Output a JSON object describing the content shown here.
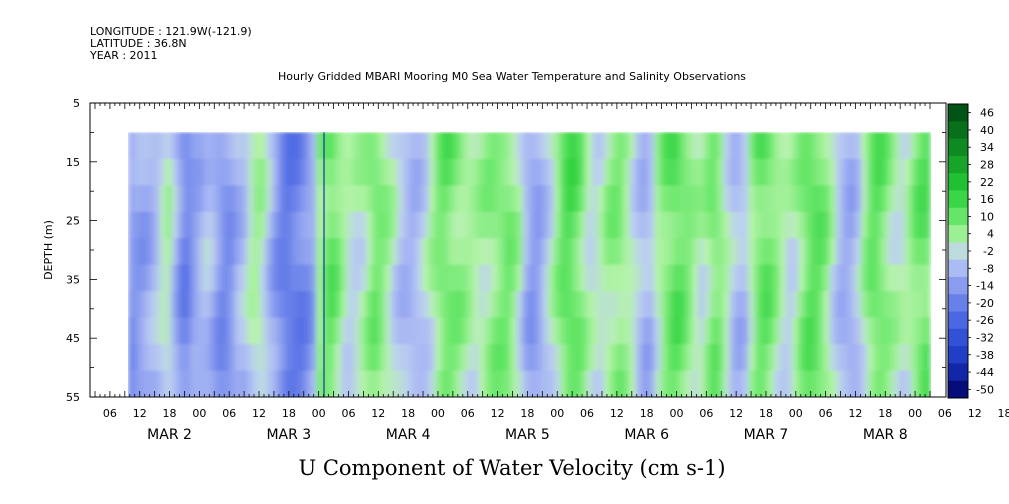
{
  "header": {
    "longitude": "LONGITUDE : 121.9W(-121.9)",
    "latitude": "LATITUDE : 36.8N",
    "year": "YEAR : 2011"
  },
  "chart_data": {
    "type": "heatmap",
    "title": "Hourly Gridded MBARI Mooring M0 Sea Water Temperature and Salinity Observations",
    "subtitle": "U Component of Water Velocity (cm s-1)",
    "ylabel": "DEPTH (m)",
    "xlabel": "",
    "y_inverted": true,
    "ylim": [
      5,
      55
    ],
    "y_ticks": [
      "5",
      "15",
      "25",
      "35",
      "45",
      "55"
    ],
    "data_depth_range": [
      10,
      55
    ],
    "x_hour_range": [
      0,
      168
    ],
    "x_start_note": "data begins near MAR 2 03",
    "x_tick_labels": [
      "06",
      "12",
      "18",
      "00",
      "06",
      "12",
      "18",
      "00",
      "06",
      "12",
      "18",
      "00",
      "06",
      "12",
      "18",
      "00",
      "06",
      "12",
      "18",
      "00",
      "06",
      "12",
      "18",
      "00",
      "06",
      "12",
      "18",
      "00",
      "06",
      "12",
      "18",
      "00"
    ],
    "day_labels": [
      "MAR  2",
      "MAR  3",
      "MAR  4",
      "MAR  5",
      "MAR  6",
      "MAR  7",
      "MAR  8"
    ],
    "colorbar": {
      "levels": [
        "46",
        "40",
        "34",
        "28",
        "22",
        "16",
        "10",
        "4",
        "-2",
        "-8",
        "-14",
        "-20",
        "-26",
        "-32",
        "-38",
        "-44",
        "-50"
      ],
      "range": [
        -50,
        50
      ]
    },
    "columns_u_cm_s": [
      -10,
      -9,
      -8,
      -6,
      -3,
      2,
      4,
      -4,
      -12,
      -14,
      -9,
      -6,
      -3,
      -5,
      -10,
      -12,
      -10,
      -5,
      -3,
      3,
      6,
      4,
      -3,
      -9,
      -14,
      -17,
      -16,
      -15,
      -12,
      -8,
      8,
      12,
      14,
      10,
      5,
      2,
      3,
      5,
      9,
      12,
      10,
      6,
      2,
      -2,
      -4,
      -5,
      -3,
      0,
      5,
      10,
      13,
      12,
      10,
      8,
      6,
      5,
      6,
      8,
      10,
      11,
      12,
      9,
      4,
      -5,
      -9,
      -8,
      -3,
      2,
      8,
      14,
      16,
      14,
      10,
      4,
      2,
      3,
      7,
      9,
      10,
      7,
      3,
      -2,
      -5,
      -3,
      5,
      10,
      13,
      15,
      13,
      10,
      6,
      4,
      8,
      12,
      10,
      4,
      -2,
      -4,
      -2,
      6,
      12,
      14,
      12,
      8,
      4,
      2,
      5,
      10,
      14,
      15,
      13,
      9,
      3,
      -3,
      -6,
      -6,
      -2,
      6,
      12,
      14,
      12,
      8,
      5,
      3,
      5,
      10,
      13,
      14
    ]
  }
}
